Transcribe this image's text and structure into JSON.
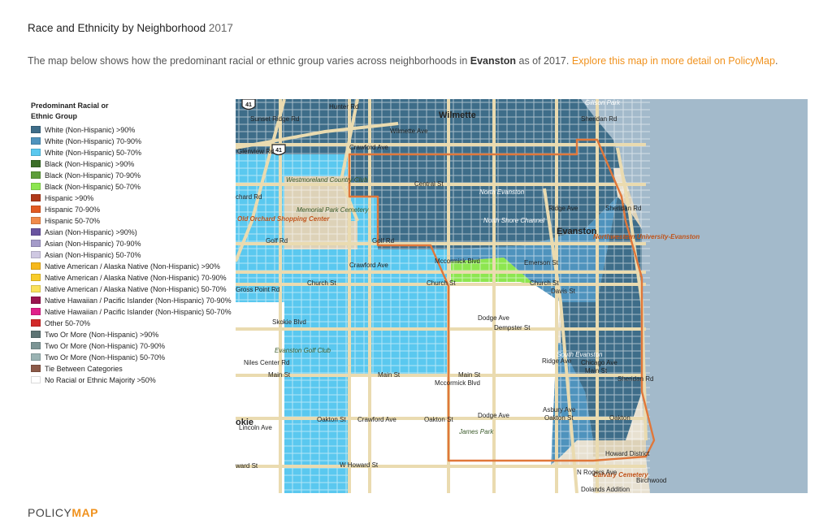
{
  "header": {
    "title": "Race and Ethnicity by Neighborhood",
    "year": "2017"
  },
  "description": {
    "text_before": "The map below shows how the predominant racial or ethnic group varies across neighborhoods in ",
    "place": "Evanston",
    "text_after": " as of 2017. ",
    "link_text": "Explore this map in more detail on PolicyMap",
    "text_end": "."
  },
  "legend": {
    "title": "Predominant Racial or Ethnic Group",
    "items": [
      {
        "label": "White (Non-Hispanic) >90%",
        "color": "#3e6d89"
      },
      {
        "label": "White (Non-Hispanic) 70-90%",
        "color": "#4f93bd"
      },
      {
        "label": "White (Non-Hispanic) 50-70%",
        "color": "#5ac8ef"
      },
      {
        "label": "Black (Non-Hispanic) >90%",
        "color": "#3b6e27"
      },
      {
        "label": "Black (Non-Hispanic) 70-90%",
        "color": "#5e9e3a"
      },
      {
        "label": "Black (Non-Hispanic) 50-70%",
        "color": "#8de650"
      },
      {
        "label": "Hispanic >90%",
        "color": "#b03a1a"
      },
      {
        "label": "Hispanic 70-90%",
        "color": "#e25a22"
      },
      {
        "label": "Hispanic 50-70%",
        "color": "#f08a4a"
      },
      {
        "label": "Asian (Non-Hispanic) >90%)",
        "color": "#6a54a0"
      },
      {
        "label": "Asian (Non-Hispanic) 70-90%",
        "color": "#a49bc9"
      },
      {
        "label": "Asian (Non-Hispanic) 50-70%",
        "color": "#cfc8e2"
      },
      {
        "label": "Native American / Alaska Native (Non-Hispanic) >90%",
        "color": "#f6b81c"
      },
      {
        "label": "Native American / Alaska Native (Non-Hispanic) 70-90%",
        "color": "#f8cc2a"
      },
      {
        "label": "Native American / Alaska Native (Non-Hispanic) 50-70%",
        "color": "#fae15a"
      },
      {
        "label": "Native Hawaiian / Pacific Islander (Non-Hispanic) 70-90%",
        "color": "#9a1450"
      },
      {
        "label": "Native Hawaiian / Pacific Islander (Non-Hispanic) 50-70%",
        "color": "#e0208a"
      },
      {
        "label": "Other 50-70%",
        "color": "#d22a2a"
      },
      {
        "label": "Two Or More (Non-Hispanic) >90%",
        "color": "#5e7575"
      },
      {
        "label": "Two Or More (Non-Hispanic) 70-90%",
        "color": "#7b9494"
      },
      {
        "label": "Two Or More (Non-Hispanic) 50-70%",
        "color": "#9ab3b3"
      },
      {
        "label": "Tie Between Categories",
        "color": "#8c5a48"
      },
      {
        "label": "No Racial or Ethnic Majority >50%",
        "color": "#ffffff"
      }
    ]
  },
  "map": {
    "shields": [
      "41",
      "41"
    ],
    "labels": {
      "wilmette": "Wilmette",
      "evanston": "Evanston",
      "north_evanston": "North Evanston",
      "south_evanston": "South Evanston",
      "northwestern": "Northwestern University-Evanston",
      "gillson_park": "Gillson Park",
      "westmoreland": "Westmoreland Country Club",
      "memorial_park": "Memorial Park Cemetery",
      "old_orchard": "Old Orchard Shopping Center",
      "evanston_golf": "Evanston Golf Club",
      "calvary": "Calvary Cemetery",
      "james_park": "James Park",
      "howard_district": "Howard District",
      "birchwood": "Birchwood",
      "dolands": "Dolands Addition",
      "north_shore_channel": "North Shore Channel",
      "glenview_rd": "Glenview Rd",
      "wilmette_ave": "Wilmette Ave",
      "central_st": "Central St",
      "golf_rd_w": "Golf Rd",
      "golf_rd_e": "Golf Rd",
      "church_st_w": "Church St",
      "church_st_c": "Church St",
      "church_st_e": "Church St",
      "emerson_st": "Emerson St",
      "davis_st": "Davis St",
      "dempster_st": "Dempster St",
      "main_st_w": "Main St",
      "main_st_c": "Main St",
      "main_st_e": "Main St",
      "main_st_e2": "Main St",
      "oakton_w": "Oakton St",
      "oakton_c": "Oakton St",
      "oakton_e": "Oakton St",
      "oakton_e2": "Oakton",
      "howard_w": "W Howard St",
      "howard_w2": "ward St",
      "chard_rd": "chard Rd",
      "okie": "okie",
      "hunter_rd": "Hunter Rd",
      "sunset_ridge": "Sunset Ridge Rd",
      "crawford_n": "Crawford Ave",
      "crawford_s": "Crawford Ave",
      "crawford_c": "Crawford Ave",
      "mccormick_n": "Mccormick Blvd",
      "mccormick_s": "Mccormick Blvd",
      "dodge_n": "Dodge Ave",
      "dodge_s": "Dodge Ave",
      "ridge_n": "Ridge Ave",
      "ridge_s": "Ridge Ave",
      "asbury": "Asbury Ave",
      "chicago_ave": "Chicago Ave",
      "sheridan_n": "Sheridan Rd",
      "sheridan_s": "Sheridan Rd",
      "sheridan_ne": "Sheridan Rd",
      "skokie_blvd": "Skokie Blvd",
      "gross_point": "Gross Point Rd",
      "niles_center": "Niles Center Rd",
      "lincoln_ave": "Lincoln Ave",
      "n_rogers": "N Rogers Ave"
    }
  },
  "footer": {
    "logo_part1": "POLICY",
    "logo_part2": "MAP"
  }
}
